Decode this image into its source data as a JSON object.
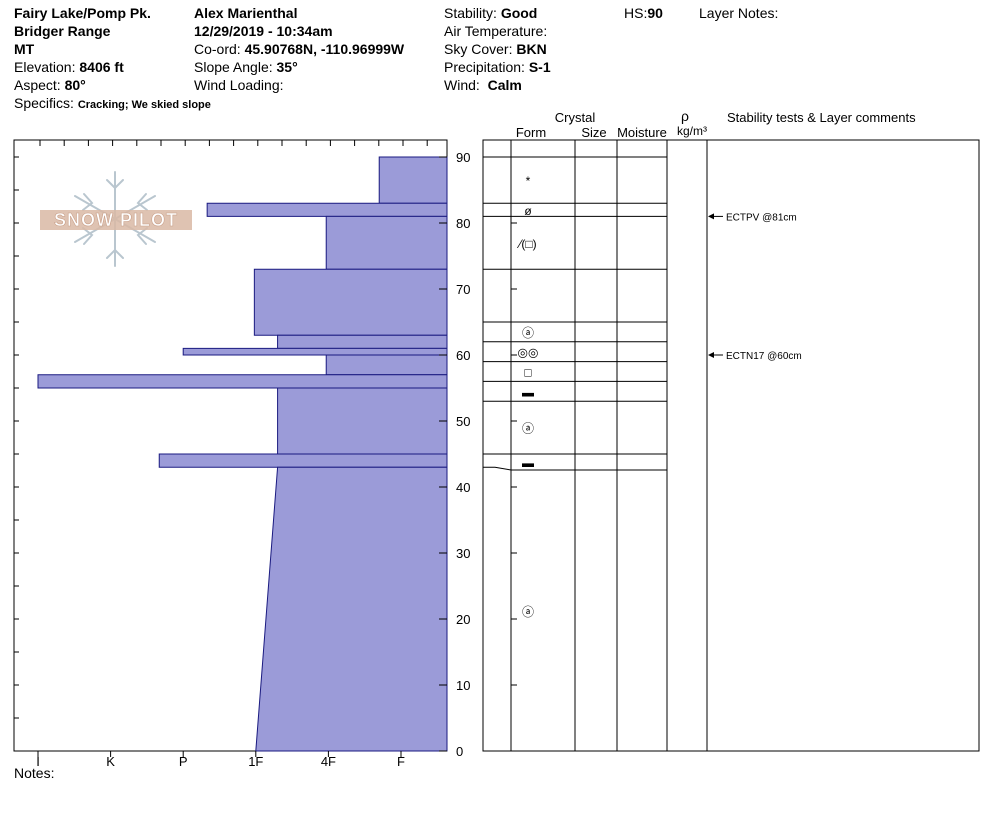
{
  "header": {
    "location": "Fairy Lake/Pomp Pk.",
    "range": "Bridger Range",
    "state": "MT",
    "elevation_label": "Elevation:",
    "elevation_value": "8406 ft",
    "aspect_label": "Aspect:",
    "aspect_value": "80°",
    "specifics_label": "Specifics:",
    "specifics_value": "Cracking; We skied slope",
    "observer": "Alex Marienthal",
    "datetime": "12/29/2019 - 10:34am",
    "coord_label": "Co-ord:",
    "coord_value": "45.90768N, -110.96999W",
    "slope_label": "Slope Angle:",
    "slope_value": "35°",
    "wind_loading_label": "Wind Loading:",
    "stability_label": "Stability:",
    "stability_value": "Good",
    "air_temp_label": "Air Temperature:",
    "sky_label": "Sky Cover:",
    "sky_value": "BKN",
    "precip_label": "Precipitation:",
    "precip_value": "S-1",
    "wind_label": "Wind:",
    "wind_value": "Calm",
    "hs_label": "HS:",
    "hs_value": "90",
    "layer_notes_label": "Layer Notes:"
  },
  "table_headers": {
    "crystal": "Crystal",
    "form": "Form",
    "size": "Size",
    "moisture": "Moisture",
    "rho": "ρ",
    "density_unit": "kg/m³",
    "stability": "Stability tests & Layer comments"
  },
  "logo_text": "SNOW PILOT",
  "notes_label": "Notes:",
  "colors": {
    "fill": "#9b9bd8",
    "stroke": "#1a1a80",
    "logo": "#d9b8a4"
  },
  "chart_data": {
    "type": "bar",
    "orientation": "horizontal",
    "ylim": [
      0,
      90
    ],
    "yticks": [
      0,
      10,
      20,
      30,
      40,
      50,
      60,
      70,
      80,
      90
    ],
    "hardness_categories": [
      "I",
      "K",
      "P",
      "1F",
      "4F",
      "F"
    ],
    "hardness_positions": {
      "I": 1,
      "K": 2,
      "P": 3,
      "1F": 4,
      "4F": 5,
      "F": 6
    },
    "layers": [
      {
        "top": 90,
        "bottom": 83,
        "hardness": 5.7
      },
      {
        "top": 83,
        "bottom": 81,
        "hardness": 3.33
      },
      {
        "top": 81,
        "bottom": 73,
        "hardness": 4.97
      },
      {
        "top": 73,
        "bottom": 63,
        "hardness": 3.98
      },
      {
        "top": 63,
        "bottom": 61,
        "hardness": 4.3
      },
      {
        "top": 61,
        "bottom": 60,
        "hardness": 3.0
      },
      {
        "top": 60,
        "bottom": 57,
        "hardness": 4.97
      },
      {
        "top": 57,
        "bottom": 55,
        "hardness": 1.0
      },
      {
        "top": 55,
        "bottom": 45,
        "hardness": 4.3
      },
      {
        "top": 45,
        "bottom": 43,
        "hardness": 2.67
      },
      {
        "top": 43,
        "bottom": 0,
        "hardness": 4.3,
        "hardness_bottom": 4.0
      }
    ],
    "grain_layers": [
      {
        "top": 90,
        "bottom": 83,
        "symbol": "*"
      },
      {
        "top": 83,
        "bottom": 81,
        "symbol": "ø"
      },
      {
        "top": 81,
        "bottom": 73,
        "symbol": "⁄(□)"
      },
      {
        "top": 73,
        "bottom": 65,
        "symbol": ""
      },
      {
        "top": 65,
        "bottom": 62,
        "symbol": "ⓐ"
      },
      {
        "top": 62,
        "bottom": 59,
        "symbol": "◎◎"
      },
      {
        "top": 59,
        "bottom": 56,
        "symbol": "□"
      },
      {
        "top": 56,
        "bottom": 53,
        "symbol": "▬"
      },
      {
        "top": 53,
        "bottom": 45,
        "symbol": "ⓐ"
      },
      {
        "top": 45,
        "bottom": 43,
        "symbol": "▬"
      },
      {
        "top": 43,
        "bottom": 0,
        "symbol": "ⓐ"
      }
    ],
    "tests": [
      {
        "depth": 81,
        "label": "ECTPV @81cm"
      },
      {
        "depth": 60,
        "label": "ECTN17 @60cm"
      }
    ]
  }
}
